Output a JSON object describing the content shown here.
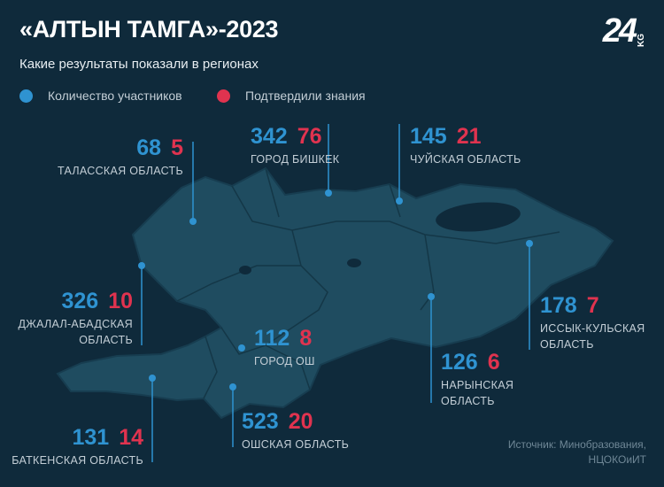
{
  "header": {
    "title": "«АЛТЫН ТАМГА»-2023",
    "subtitle": "Какие результаты показали в регионах",
    "logo": "24",
    "logo_suffix": "KG"
  },
  "legend": [
    {
      "label": "Количество участников",
      "color": "#2f93d1"
    },
    {
      "label": "Подтвердили знания",
      "color": "#e0334f"
    }
  ],
  "regions": [
    {
      "name": "ТАЛАССКАЯ ОБЛАСТЬ",
      "participants": 68,
      "confirmed": 5
    },
    {
      "name": "ГОРОД БИШКЕК",
      "participants": 342,
      "confirmed": 76
    },
    {
      "name": "ЧУЙСКАЯ ОБЛАСТЬ",
      "participants": 145,
      "confirmed": 21
    },
    {
      "name": "ДЖАЛАЛ-АБАДСКАЯ ОБЛАСТЬ",
      "participants": 326,
      "confirmed": 10
    },
    {
      "name": "ГОРОД ОШ",
      "participants": 112,
      "confirmed": 8
    },
    {
      "name": "ИССЫК-КУЛЬСКАЯ ОБЛАСТЬ",
      "participants": 178,
      "confirmed": 7
    },
    {
      "name": "НАРЫНСКАЯ ОБЛАСТЬ",
      "participants": 126,
      "confirmed": 6
    },
    {
      "name": "БАТКЕНСКАЯ ОБЛАСТЬ",
      "participants": 131,
      "confirmed": 14
    },
    {
      "name": "ОШСКАЯ ОБЛАСТЬ",
      "participants": 523,
      "confirmed": 20
    }
  ],
  "source": "Источник: Минобразования, НЦОКОиИТ"
}
